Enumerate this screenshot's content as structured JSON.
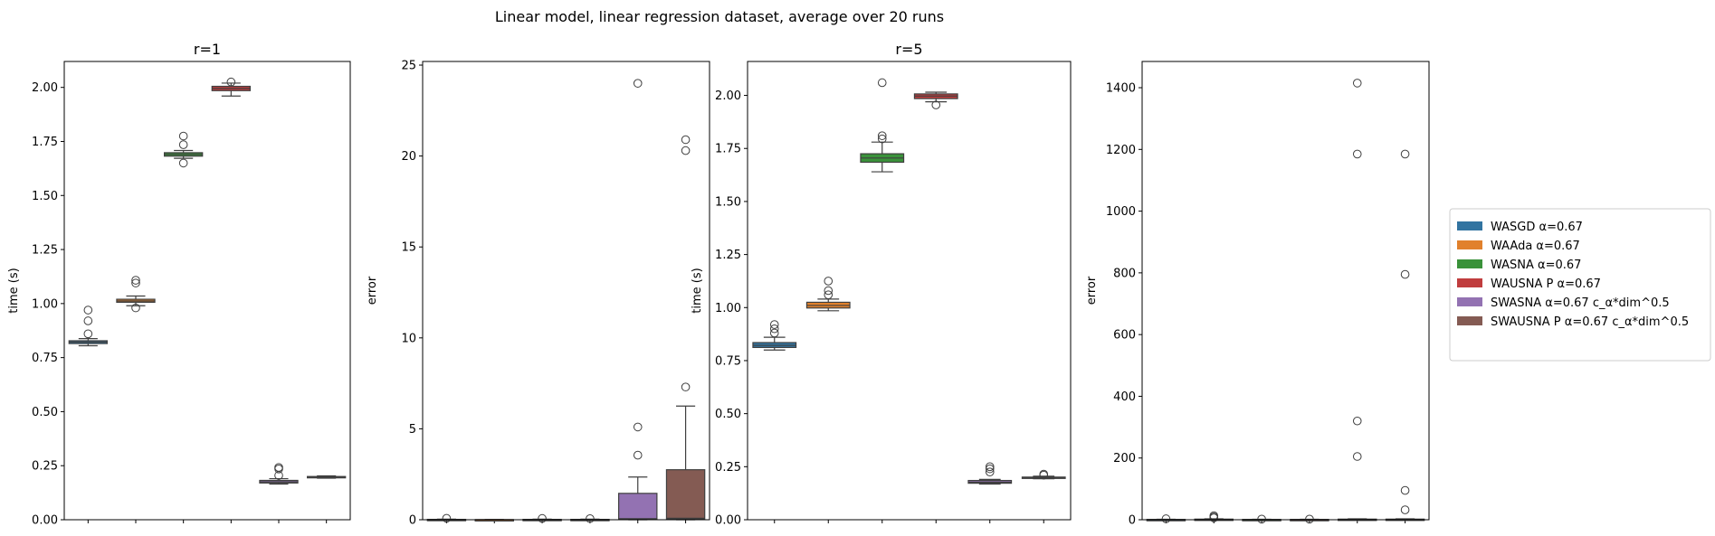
{
  "figure": {
    "suptitle": "Linear model, linear regression dataset, average over 20 runs"
  },
  "legend": {
    "placement": "center-right",
    "entries": [
      {
        "label": "WASGD α=0.67",
        "color": "#3274a1"
      },
      {
        "label": "WAAda α=0.67",
        "color": "#e1812c"
      },
      {
        "label": "WASNA α=0.67",
        "color": "#3a923a"
      },
      {
        "label": "WAUSNA P α=0.67",
        "color": "#c03d3e"
      },
      {
        "label": "SWASNA α=0.67 c_α*dim^0.5",
        "color": "#9372b2"
      },
      {
        "label": "SWAUSNA P α=0.67 c_α*dim^0.5",
        "color": "#845b53"
      }
    ]
  },
  "chart_data": [
    {
      "type": "box",
      "title": "r=1",
      "xlabel": "",
      "ylabel": "time (s)",
      "ylim": [
        0,
        2.12
      ],
      "yticks": [
        0.0,
        0.25,
        0.5,
        0.75,
        1.0,
        1.25,
        1.5,
        1.75,
        2.0
      ],
      "yticklabels": [
        "0.00",
        "0.25",
        "0.50",
        "0.75",
        "1.00",
        "1.25",
        "1.50",
        "1.75",
        "2.00"
      ],
      "grid": false,
      "boxes": [
        {
          "series": 0,
          "whislo": 0.805,
          "q1": 0.815,
          "med": 0.822,
          "q3": 0.828,
          "whishi": 0.838,
          "fliers": [
            0.86,
            0.92,
            0.97
          ]
        },
        {
          "series": 1,
          "whislo": 0.99,
          "q1": 1.006,
          "med": 1.012,
          "q3": 1.02,
          "whishi": 1.035,
          "fliers": [
            0.98,
            1.095,
            1.108
          ]
        },
        {
          "series": 2,
          "whislo": 1.672,
          "q1": 1.682,
          "med": 1.69,
          "q3": 1.698,
          "whishi": 1.708,
          "fliers": [
            1.65,
            1.735,
            1.775
          ]
        },
        {
          "series": 3,
          "whislo": 1.96,
          "q1": 1.985,
          "med": 1.995,
          "q3": 2.005,
          "whishi": 2.02,
          "fliers": [
            2.025
          ]
        },
        {
          "series": 4,
          "whislo": 0.165,
          "q1": 0.17,
          "med": 0.175,
          "q3": 0.182,
          "whishi": 0.19,
          "fliers": [
            0.205,
            0.235,
            0.242
          ]
        },
        {
          "series": 5,
          "whislo": 0.192,
          "q1": 0.195,
          "med": 0.197,
          "q3": 0.2,
          "whishi": 0.203,
          "fliers": []
        }
      ]
    },
    {
      "type": "box",
      "title": "",
      "xlabel": "",
      "ylabel": "error",
      "ylim": [
        0,
        25.2
      ],
      "yticks": [
        0,
        5,
        10,
        15,
        20,
        25
      ],
      "yticklabels": [
        "0",
        "5",
        "10",
        "15",
        "20",
        "25"
      ],
      "grid": false,
      "boxes": [
        {
          "series": 0,
          "whislo": 0.0,
          "q1": 0.005,
          "med": 0.01,
          "q3": 0.02,
          "whishi": 0.03,
          "fliers": [
            0.08
          ]
        },
        {
          "series": 1,
          "whislo": 0.0,
          "q1": 0.002,
          "med": 0.004,
          "q3": 0.008,
          "whishi": 0.012,
          "fliers": []
        },
        {
          "series": 2,
          "whislo": 0.0,
          "q1": 0.005,
          "med": 0.01,
          "q3": 0.02,
          "whishi": 0.03,
          "fliers": [
            0.07
          ]
        },
        {
          "series": 3,
          "whislo": 0.0,
          "q1": 0.005,
          "med": 0.01,
          "q3": 0.02,
          "whishi": 0.03,
          "fliers": [
            0.06
          ]
        },
        {
          "series": 4,
          "whislo": 0.0,
          "q1": 0.02,
          "med": 0.06,
          "q3": 1.45,
          "whishi": 2.35,
          "fliers": [
            3.55,
            5.1,
            24.0
          ]
        },
        {
          "series": 5,
          "whislo": 0.0,
          "q1": 0.02,
          "med": 0.08,
          "q3": 2.75,
          "whishi": 6.25,
          "fliers": [
            7.3,
            20.3,
            20.9
          ]
        }
      ]
    },
    {
      "type": "box",
      "title": "r=5",
      "xlabel": "",
      "ylabel": "time (s)",
      "ylim": [
        0,
        2.16
      ],
      "yticks": [
        0.0,
        0.25,
        0.5,
        0.75,
        1.0,
        1.25,
        1.5,
        1.75,
        2.0
      ],
      "yticklabels": [
        "0.00",
        "0.25",
        "0.50",
        "0.75",
        "1.00",
        "1.25",
        "1.50",
        "1.75",
        "2.00"
      ],
      "grid": false,
      "boxes": [
        {
          "series": 0,
          "whislo": 0.8,
          "q1": 0.812,
          "med": 0.822,
          "q3": 0.835,
          "whishi": 0.86,
          "fliers": [
            0.88,
            0.9,
            0.92
          ]
        },
        {
          "series": 1,
          "whislo": 0.985,
          "q1": 0.998,
          "med": 1.01,
          "q3": 1.025,
          "whishi": 1.04,
          "fliers": [
            1.06,
            1.08,
            1.125
          ]
        },
        {
          "series": 2,
          "whislo": 1.64,
          "q1": 1.685,
          "med": 1.705,
          "q3": 1.725,
          "whishi": 1.78,
          "fliers": [
            1.795,
            1.81,
            2.06
          ]
        },
        {
          "series": 3,
          "whislo": 1.97,
          "q1": 1.985,
          "med": 1.997,
          "q3": 2.007,
          "whishi": 2.015,
          "fliers": [
            1.955
          ]
        },
        {
          "series": 4,
          "whislo": 0.168,
          "q1": 0.172,
          "med": 0.177,
          "q3": 0.185,
          "whishi": 0.19,
          "fliers": [
            0.225,
            0.24,
            0.25
          ]
        },
        {
          "series": 5,
          "whislo": 0.193,
          "q1": 0.196,
          "med": 0.198,
          "q3": 0.201,
          "whishi": 0.205,
          "fliers": [
            0.21,
            0.215
          ]
        }
      ]
    },
    {
      "type": "box",
      "title": "",
      "xlabel": "",
      "ylabel": "error",
      "ylim": [
        0,
        1485
      ],
      "yticks": [
        0,
        200,
        400,
        600,
        800,
        1000,
        1200,
        1400
      ],
      "yticklabels": [
        "0",
        "200",
        "400",
        "600",
        "800",
        "1000",
        "1200",
        "1400"
      ],
      "grid": false,
      "boxes": [
        {
          "series": 0,
          "whislo": 0.0,
          "q1": 0.2,
          "med": 0.5,
          "q3": 1.0,
          "whishi": 1.5,
          "fliers": [
            3.0
          ]
        },
        {
          "series": 1,
          "whislo": 0.0,
          "q1": 0.5,
          "med": 1.0,
          "q3": 2.0,
          "whishi": 3.0,
          "fliers": [
            6.0,
            9.0,
            13.0
          ]
        },
        {
          "series": 2,
          "whislo": 0.0,
          "q1": 0.2,
          "med": 0.5,
          "q3": 1.0,
          "whishi": 1.5,
          "fliers": [
            2.0
          ]
        },
        {
          "series": 3,
          "whislo": 0.0,
          "q1": 0.2,
          "med": 0.5,
          "q3": 1.0,
          "whishi": 1.5,
          "fliers": [
            2.0
          ]
        },
        {
          "series": 4,
          "whislo": 0.0,
          "q1": 0.5,
          "med": 1.0,
          "q3": 2.0,
          "whishi": 3.0,
          "fliers": [
            205,
            320,
            1185,
            1415
          ]
        },
        {
          "series": 5,
          "whislo": 0.0,
          "q1": 0.5,
          "med": 1.0,
          "q3": 2.0,
          "whishi": 3.0,
          "fliers": [
            32,
            95,
            795,
            1185
          ]
        }
      ]
    }
  ]
}
